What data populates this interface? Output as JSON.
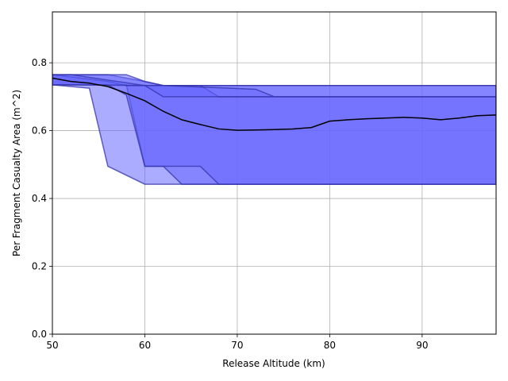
{
  "chart_data": {
    "type": "area",
    "xlabel": "Release Altitude (km)",
    "ylabel": "Per Fragment Casualty Area (m^2)",
    "xlim": [
      50,
      98
    ],
    "ylim": [
      0,
      0.95
    ],
    "xticks": [
      50,
      60,
      70,
      80,
      90
    ],
    "yticks": [
      0.0,
      0.2,
      0.4,
      0.6,
      0.8
    ],
    "grid": true,
    "colors": {
      "band_fill": "#6666ff",
      "band_edge": "#3333aa",
      "mean_line": "#000000",
      "grid": "#b0b0b0"
    },
    "bands": [
      {
        "x": [
          50,
          54,
          56,
          60,
          62,
          98
        ],
        "upper": [
          0.765,
          0.765,
          0.765,
          0.745,
          0.733,
          0.733
        ],
        "lower": [
          0.735,
          0.725,
          0.495,
          0.442,
          0.442,
          0.442
        ]
      },
      {
        "x": [
          50,
          58,
          60,
          62,
          64,
          98
        ],
        "upper": [
          0.765,
          0.765,
          0.745,
          0.733,
          0.733,
          0.733
        ],
        "lower": [
          0.735,
          0.735,
          0.495,
          0.495,
          0.442,
          0.442
        ]
      },
      {
        "x": [
          50,
          56,
          58,
          60,
          66,
          68,
          98
        ],
        "upper": [
          0.765,
          0.745,
          0.733,
          0.733,
          0.733,
          0.7,
          0.7
        ],
        "lower": [
          0.735,
          0.735,
          0.705,
          0.495,
          0.495,
          0.442,
          0.442
        ]
      },
      {
        "x": [
          50,
          52,
          60,
          62,
          72,
          74,
          98
        ],
        "upper": [
          0.765,
          0.765,
          0.733,
          0.733,
          0.722,
          0.7,
          0.7
        ],
        "lower": [
          0.735,
          0.735,
          0.733,
          0.7,
          0.7,
          0.7,
          0.7
        ]
      }
    ],
    "mean_line": {
      "x": [
        50,
        52,
        54,
        56,
        58,
        60,
        62,
        64,
        66,
        68,
        70,
        72,
        74,
        76,
        78,
        80,
        82,
        84,
        86,
        88,
        90,
        92,
        94,
        96,
        98
      ],
      "y": [
        0.755,
        0.745,
        0.74,
        0.73,
        0.71,
        0.688,
        0.657,
        0.632,
        0.618,
        0.605,
        0.601,
        0.602,
        0.603,
        0.605,
        0.609,
        0.628,
        0.632,
        0.635,
        0.637,
        0.639,
        0.637,
        0.632,
        0.637,
        0.644,
        0.646
      ]
    }
  }
}
